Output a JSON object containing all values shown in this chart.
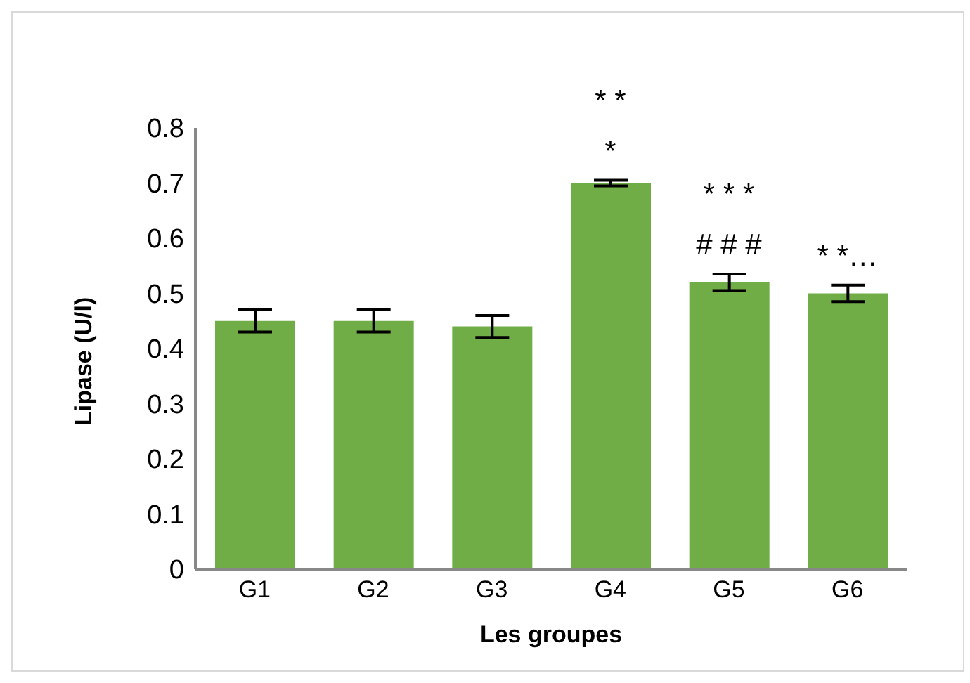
{
  "chart_data": {
    "type": "bar",
    "xlabel": "Les groupes",
    "ylabel": "Lipase (U/l)",
    "categories": [
      "G1",
      "G2",
      "G3",
      "G4",
      "G5",
      "G6"
    ],
    "values": [
      0.45,
      0.45,
      0.44,
      0.7,
      0.52,
      0.5
    ],
    "errors": [
      0.02,
      0.02,
      0.02,
      0.005,
      0.015,
      0.015
    ],
    "color": "#70ad47",
    "ylim": [
      0,
      0.8
    ],
    "yticks": [
      0,
      0.1,
      0.2,
      0.3,
      0.4,
      0.5,
      0.6,
      0.7,
      0.8
    ],
    "grid": false,
    "legend": false,
    "annotations": [
      {
        "text": "*",
        "x": "G4",
        "y": 0.705
      },
      {
        "text": "* *",
        "x": "G4",
        "y": 0.705
      },
      {
        "text": "# # #",
        "x": "G5",
        "y": 0.535
      },
      {
        "text": "* * *",
        "x": "G5",
        "y": 0.535
      },
      {
        "text": "* *…",
        "x": "G6",
        "y": 0.515
      }
    ]
  }
}
